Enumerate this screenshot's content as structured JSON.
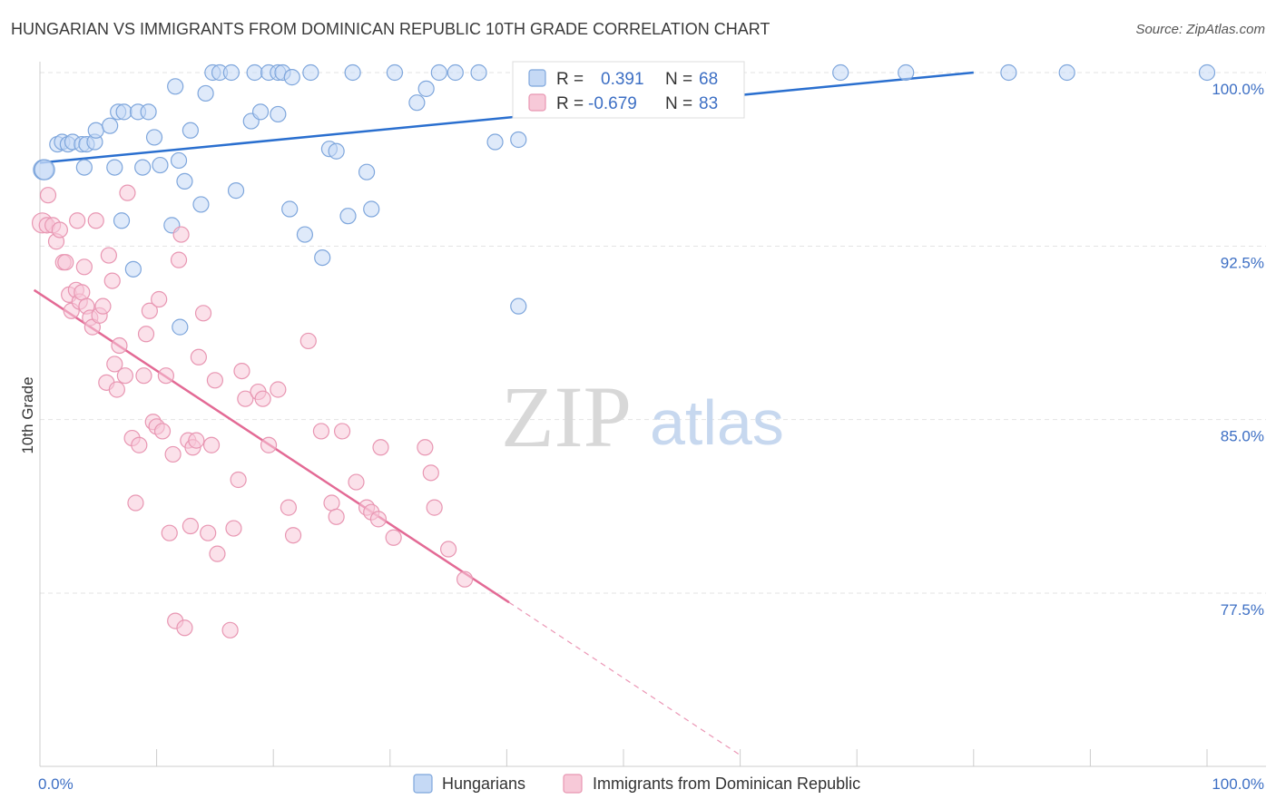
{
  "title": "HUNGARIAN VS IMMIGRANTS FROM DOMINICAN REPUBLIC 10TH GRADE CORRELATION CHART",
  "source": "Source: ZipAtlas.com",
  "watermark": {
    "zip": "ZIP",
    "atlas": "atlas"
  },
  "colors": {
    "blue": "#2a6fcf",
    "blue_fill": "#c5d9f5",
    "blue_stroke": "#7ea6dc",
    "pink": "#e36a95",
    "pink_fill": "#f7c9d8",
    "pink_stroke": "#e896b2",
    "grid": "#e3e3e3",
    "tick_text": "#3d6fc4"
  },
  "stats_legend": [
    {
      "r_label": "R =",
      "r_value": "0.391",
      "n_label": "N =",
      "n_value": "68",
      "color": "blue"
    },
    {
      "r_label": "R =",
      "r_value": "-0.679",
      "n_label": "N =",
      "n_value": "83",
      "color": "pink"
    }
  ],
  "chart_data": {
    "type": "scatter",
    "xlabel": "",
    "ylabel": "10th Grade",
    "xlim": [
      0,
      100
    ],
    "ylim": [
      71.0,
      100.6
    ],
    "x_tick_labels": [
      {
        "value": 0,
        "label": "0.0%"
      },
      {
        "value": 100,
        "label": "100.0%"
      }
    ],
    "y_ticks": [
      {
        "value": 100.0,
        "label": "100.0%"
      },
      {
        "value": 92.5,
        "label": "92.5%"
      },
      {
        "value": 85.0,
        "label": "85.0%"
      },
      {
        "value": 77.5,
        "label": "77.5%"
      }
    ],
    "x_minor_ticks": [
      0,
      10,
      20,
      30,
      40,
      50,
      60,
      70,
      80,
      90,
      100
    ],
    "grid": true,
    "legend_position": "bottom-center",
    "series": [
      {
        "name": "Hungarians",
        "color": "blue",
        "trend": {
          "x0": 0,
          "y0": 96.1,
          "x1": 80,
          "y1": 100.0,
          "dashed_after": null
        },
        "points": [
          [
            0.3,
            95.8
          ],
          [
            0.4,
            95.8
          ],
          [
            1.5,
            96.9
          ],
          [
            1.9,
            97.0
          ],
          [
            2.4,
            96.9
          ],
          [
            2.8,
            97.0
          ],
          [
            3.6,
            96.9
          ],
          [
            4.0,
            96.9
          ],
          [
            4.7,
            97.0
          ],
          [
            3.8,
            95.9
          ],
          [
            4.8,
            97.5
          ],
          [
            6.0,
            97.7
          ],
          [
            6.4,
            95.9
          ],
          [
            6.7,
            98.3
          ],
          [
            7.2,
            98.3
          ],
          [
            8.4,
            98.3
          ],
          [
            9.3,
            98.3
          ],
          [
            8.8,
            95.9
          ],
          [
            9.8,
            97.2
          ],
          [
            10.3,
            96.0
          ],
          [
            11.3,
            93.4
          ],
          [
            11.6,
            99.4
          ],
          [
            11.9,
            96.2
          ],
          [
            12.4,
            95.3
          ],
          [
            12.9,
            97.5
          ],
          [
            13.8,
            94.3
          ],
          [
            14.2,
            99.1
          ],
          [
            14.8,
            100.0
          ],
          [
            15.4,
            100.0
          ],
          [
            16.4,
            100.0
          ],
          [
            16.8,
            94.9
          ],
          [
            18.4,
            100.0
          ],
          [
            18.1,
            97.9
          ],
          [
            18.9,
            98.3
          ],
          [
            19.6,
            100.0
          ],
          [
            20.4,
            100.0
          ],
          [
            20.8,
            100.0
          ],
          [
            20.4,
            98.2
          ],
          [
            21.6,
            99.8
          ],
          [
            21.4,
            94.1
          ],
          [
            22.7,
            93.0
          ],
          [
            23.2,
            100.0
          ],
          [
            24.2,
            92.0
          ],
          [
            24.8,
            96.7
          ],
          [
            25.4,
            96.6
          ],
          [
            26.4,
            93.8
          ],
          [
            26.8,
            100.0
          ],
          [
            28.0,
            95.7
          ],
          [
            28.4,
            94.1
          ],
          [
            30.4,
            100.0
          ],
          [
            32.3,
            98.7
          ],
          [
            33.1,
            99.3
          ],
          [
            34.2,
            100.0
          ],
          [
            35.6,
            100.0
          ],
          [
            37.6,
            100.0
          ],
          [
            39.0,
            97.0
          ],
          [
            41.0,
            97.1
          ],
          [
            41.0,
            89.9
          ],
          [
            45.7,
            100.0
          ],
          [
            49.7,
            100.0
          ],
          [
            68.6,
            100.0
          ],
          [
            74.2,
            100.0
          ],
          [
            83.0,
            100.0
          ],
          [
            88.0,
            100.0
          ],
          [
            100.0,
            100.0
          ],
          [
            8.0,
            91.5
          ],
          [
            7.0,
            93.6
          ],
          [
            12.0,
            89.0
          ]
        ]
      },
      {
        "name": "Immigrants from Dominican Republic",
        "color": "pink",
        "trend": {
          "x0": -0.5,
          "y0": 90.6,
          "x1": 40.2,
          "y1": 77.1,
          "dash_x1": 60,
          "dash_y1": 70.5
        },
        "points": [
          [
            0.2,
            93.5
          ],
          [
            0.6,
            93.4
          ],
          [
            0.7,
            94.7
          ],
          [
            1.1,
            93.4
          ],
          [
            1.4,
            92.7
          ],
          [
            1.7,
            93.2
          ],
          [
            2.0,
            91.8
          ],
          [
            2.2,
            91.8
          ],
          [
            2.5,
            90.4
          ],
          [
            2.7,
            89.7
          ],
          [
            3.1,
            90.6
          ],
          [
            3.4,
            90.1
          ],
          [
            3.6,
            90.5
          ],
          [
            3.8,
            91.6
          ],
          [
            4.0,
            89.9
          ],
          [
            4.3,
            89.4
          ],
          [
            4.5,
            89.0
          ],
          [
            4.8,
            93.6
          ],
          [
            5.1,
            89.5
          ],
          [
            5.4,
            89.9
          ],
          [
            5.7,
            86.6
          ],
          [
            5.9,
            92.1
          ],
          [
            6.2,
            91.0
          ],
          [
            6.4,
            87.4
          ],
          [
            6.6,
            86.3
          ],
          [
            6.8,
            88.2
          ],
          [
            7.3,
            86.9
          ],
          [
            7.5,
            94.8
          ],
          [
            7.9,
            84.2
          ],
          [
            8.2,
            81.4
          ],
          [
            8.5,
            83.9
          ],
          [
            8.9,
            86.9
          ],
          [
            9.1,
            88.7
          ],
          [
            9.4,
            89.7
          ],
          [
            9.7,
            84.9
          ],
          [
            10.0,
            84.7
          ],
          [
            10.2,
            90.2
          ],
          [
            10.5,
            84.5
          ],
          [
            10.8,
            86.9
          ],
          [
            11.1,
            80.1
          ],
          [
            11.4,
            83.5
          ],
          [
            11.6,
            76.3
          ],
          [
            11.9,
            91.9
          ],
          [
            12.1,
            93.0
          ],
          [
            12.4,
            76.0
          ],
          [
            12.7,
            84.1
          ],
          [
            12.9,
            80.4
          ],
          [
            13.1,
            83.8
          ],
          [
            13.4,
            84.1
          ],
          [
            13.6,
            87.7
          ],
          [
            14.0,
            89.6
          ],
          [
            14.4,
            80.1
          ],
          [
            14.7,
            83.9
          ],
          [
            15.0,
            86.7
          ],
          [
            15.2,
            79.2
          ],
          [
            16.3,
            75.9
          ],
          [
            16.6,
            80.3
          ],
          [
            17.0,
            82.4
          ],
          [
            17.3,
            87.1
          ],
          [
            17.6,
            85.9
          ],
          [
            18.7,
            86.2
          ],
          [
            19.1,
            85.9
          ],
          [
            19.6,
            83.9
          ],
          [
            20.4,
            86.3
          ],
          [
            21.3,
            81.2
          ],
          [
            21.7,
            80.0
          ],
          [
            23.0,
            88.4
          ],
          [
            24.1,
            84.5
          ],
          [
            25.0,
            81.4
          ],
          [
            25.4,
            80.8
          ],
          [
            25.9,
            84.5
          ],
          [
            27.1,
            82.3
          ],
          [
            28.0,
            81.2
          ],
          [
            28.4,
            81.0
          ],
          [
            29.0,
            80.7
          ],
          [
            29.2,
            83.8
          ],
          [
            30.3,
            79.9
          ],
          [
            33.0,
            83.8
          ],
          [
            33.5,
            82.7
          ],
          [
            33.8,
            81.2
          ],
          [
            35.0,
            79.4
          ],
          [
            36.4,
            78.1
          ],
          [
            3.2,
            93.6
          ]
        ]
      }
    ]
  }
}
